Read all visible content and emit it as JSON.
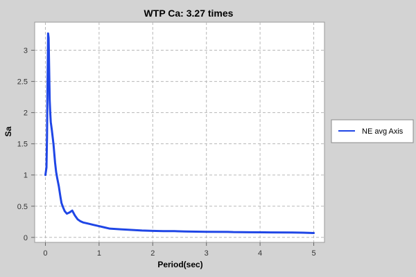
{
  "chart_data": {
    "type": "line",
    "title": "WTP Ca: 3.27 times",
    "xlabel": "Period(sec)",
    "ylabel": "Sa",
    "xlim": [
      -0.2,
      5.2
    ],
    "ylim": [
      -0.08,
      3.45
    ],
    "x_ticks": [
      "0",
      "1",
      "2",
      "3",
      "4",
      "5"
    ],
    "y_ticks": [
      "0",
      "0.5",
      "1",
      "1.5",
      "2",
      "2.5",
      "3"
    ],
    "grid": true,
    "legend_position": "right",
    "series": [
      {
        "name": "NE avg Axis",
        "color": "#1f46e6",
        "x": [
          0.0,
          0.02,
          0.03,
          0.04,
          0.05,
          0.06,
          0.07,
          0.08,
          0.09,
          0.1,
          0.12,
          0.15,
          0.18,
          0.2,
          0.22,
          0.25,
          0.28,
          0.3,
          0.33,
          0.36,
          0.4,
          0.45,
          0.5,
          0.55,
          0.6,
          0.65,
          0.7,
          0.8,
          0.9,
          1.0,
          1.1,
          1.2,
          1.4,
          1.6,
          1.8,
          2.0,
          2.2,
          2.4,
          2.6,
          3.0,
          3.4,
          3.5,
          3.8,
          4.2,
          4.6,
          4.8,
          5.0
        ],
        "y": [
          1.0,
          1.12,
          1.6,
          2.5,
          3.27,
          3.2,
          2.7,
          2.2,
          2.0,
          1.85,
          1.72,
          1.5,
          1.2,
          1.05,
          0.95,
          0.82,
          0.65,
          0.55,
          0.48,
          0.42,
          0.38,
          0.4,
          0.43,
          0.35,
          0.29,
          0.26,
          0.24,
          0.22,
          0.2,
          0.18,
          0.16,
          0.14,
          0.13,
          0.12,
          0.11,
          0.105,
          0.1,
          0.1,
          0.095,
          0.09,
          0.088,
          0.085,
          0.082,
          0.08,
          0.078,
          0.075,
          0.07
        ]
      }
    ]
  }
}
